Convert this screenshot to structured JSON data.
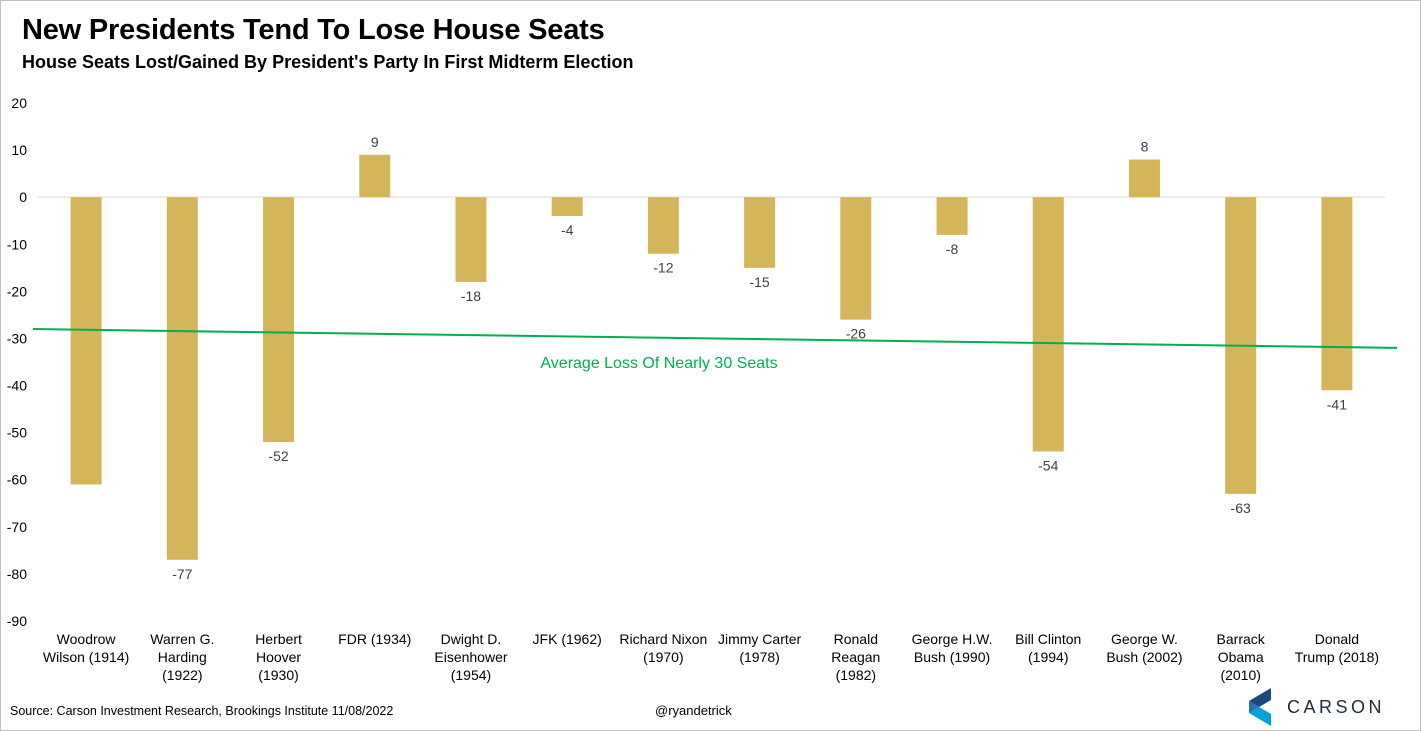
{
  "header": {
    "title": "New Presidents Tend To Lose House Seats",
    "subtitle": "House Seats Lost/Gained By President's Party In First Midterm Election"
  },
  "chart_data": {
    "type": "bar",
    "categories": [
      [
        "Woodrow",
        "Wilson (1914)"
      ],
      [
        "Warren G.",
        "Harding",
        "(1922)"
      ],
      [
        "Herbert",
        "Hoover",
        "(1930)"
      ],
      [
        "FDR (1934)"
      ],
      [
        "Dwight D.",
        "Eisenhower",
        "(1954)"
      ],
      [
        "JFK (1962)"
      ],
      [
        "Richard Nixon",
        "(1970)"
      ],
      [
        "Jimmy Carter",
        "(1978)"
      ],
      [
        "Ronald",
        "Reagan",
        "(1982)"
      ],
      [
        "George H.W.",
        "Bush (1990)"
      ],
      [
        "Bill Clinton",
        "(1994)"
      ],
      [
        "George W.",
        "Bush (2002)"
      ],
      [
        "Barrack",
        "Obama",
        "(2010)"
      ],
      [
        "Donald",
        "Trump (2018)"
      ]
    ],
    "values": [
      -61,
      -77,
      -52,
      9,
      -18,
      -4,
      -12,
      -15,
      -26,
      -8,
      -54,
      8,
      -63,
      -41
    ],
    "data_labels": [
      "",
      "-77",
      "-52",
      "9",
      "-18",
      "-4",
      "-12",
      "-15",
      "-26",
      "-8",
      "-54",
      "8",
      "-63",
      "-41"
    ],
    "ylim": [
      -90,
      20
    ],
    "yticks": [
      20,
      10,
      0,
      -10,
      -20,
      -30,
      -40,
      -50,
      -60,
      -70,
      -80,
      -90
    ],
    "bar_color": "#d5b55a",
    "trendline": {
      "label": "Average Loss Of Nearly 30 Seats",
      "start_value": -28,
      "end_value": -32,
      "color": "#00b050"
    },
    "grid": false,
    "legend": "none"
  },
  "footer": {
    "source": "Source: Carson Investment Research, Brookings Institute 11/08/2022",
    "handle": "@ryandetrick",
    "logo_text": "CARSON"
  }
}
